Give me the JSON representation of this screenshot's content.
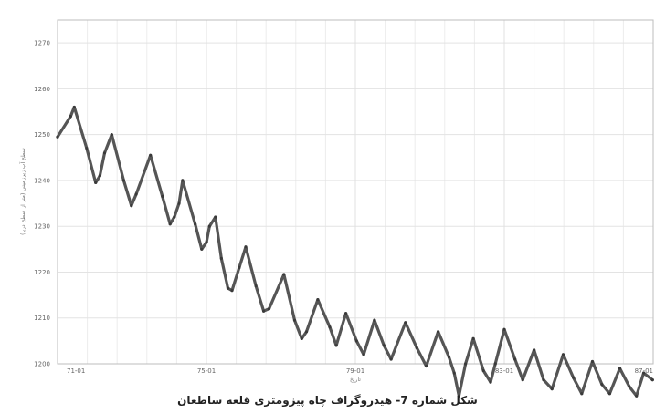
{
  "caption": "شکل شماره 7- هیدروگراف چاه پیزومتری قلعه ساطعان",
  "chart_data": {
    "type": "line",
    "title": "",
    "xlabel": "تاریخ",
    "ylabel": "سطح آب زیرزمینی (متر از سطح دریا)",
    "ylim": [
      1200,
      1275
    ],
    "yticks": [
      1200,
      1210,
      1220,
      1230,
      1240,
      1250,
      1260,
      1270
    ],
    "ytick_labels": [
      "1200",
      "1210",
      "1220",
      "1230",
      "1240",
      "1250",
      "1260",
      "1270"
    ],
    "xlim": [
      0,
      100
    ],
    "xticks": [
      0,
      25,
      50,
      75,
      100
    ],
    "xtick_labels": [
      "71-01",
      "75-01",
      "79-01",
      "83-01",
      "87-01"
    ],
    "grid": true,
    "line_color": "#555555",
    "series": [
      {
        "values": [
          [
            0,
            1249.5
          ],
          [
            2.2,
            1254
          ],
          [
            2.8,
            1256
          ],
          [
            4.9,
            1247
          ],
          [
            6.4,
            1239.5
          ],
          [
            7.1,
            1241
          ],
          [
            7.9,
            1246
          ],
          [
            9.1,
            1250
          ],
          [
            11.1,
            1240
          ],
          [
            12.4,
            1234.5
          ],
          [
            13.2,
            1237
          ],
          [
            15.6,
            1245.5
          ],
          [
            17.6,
            1236.5
          ],
          [
            18.9,
            1230.5
          ],
          [
            19.6,
            1232
          ],
          [
            20.4,
            1235
          ],
          [
            21.0,
            1240
          ],
          [
            23.1,
            1230.5
          ],
          [
            24.2,
            1225
          ],
          [
            25.0,
            1226.5
          ],
          [
            25.5,
            1230
          ],
          [
            26.5,
            1232
          ],
          [
            27.5,
            1223
          ],
          [
            28.6,
            1216.5
          ],
          [
            29.3,
            1216
          ],
          [
            30.5,
            1221
          ],
          [
            31.6,
            1225.5
          ],
          [
            33.3,
            1217
          ],
          [
            34.6,
            1211.5
          ],
          [
            35.5,
            1212
          ],
          [
            38.0,
            1219.5
          ],
          [
            39.8,
            1209.5
          ],
          [
            41.0,
            1205.5
          ],
          [
            41.8,
            1207
          ],
          [
            43.7,
            1214
          ],
          [
            45.7,
            1208
          ],
          [
            46.8,
            1204
          ],
          [
            48.4,
            1211
          ],
          [
            50.2,
            1205
          ],
          [
            51.4,
            1202
          ],
          [
            53.2,
            1209.5
          ],
          [
            54.8,
            1204
          ],
          [
            56.0,
            1201
          ],
          [
            58.4,
            1209
          ],
          [
            60.3,
            1203.5
          ],
          [
            61.9,
            1199.5
          ],
          [
            63.9,
            1207
          ],
          [
            65.7,
            1201.5
          ],
          [
            66.6,
            1198
          ],
          [
            67.4,
            1193
          ],
          [
            68.5,
            1200
          ],
          [
            69.8,
            1205.5
          ],
          [
            71.5,
            1198.5
          ],
          [
            72.7,
            1196
          ],
          [
            73.5,
            1200
          ],
          [
            75.0,
            1207.5
          ],
          [
            76.8,
            1201
          ],
          [
            78.1,
            1196.5
          ],
          [
            80.0,
            1203
          ],
          [
            81.6,
            1196.5
          ],
          [
            83.0,
            1194.5
          ],
          [
            84.9,
            1202
          ],
          [
            86.6,
            1197
          ],
          [
            88.0,
            1193.5
          ],
          [
            89.8,
            1200.5
          ],
          [
            91.4,
            1195.5
          ],
          [
            92.7,
            1193.5
          ],
          [
            94.4,
            1199
          ],
          [
            96.0,
            1195
          ],
          [
            97.2,
            1193
          ],
          [
            98.4,
            1198
          ],
          [
            99.9,
            1196.5
          ]
        ]
      }
    ]
  }
}
